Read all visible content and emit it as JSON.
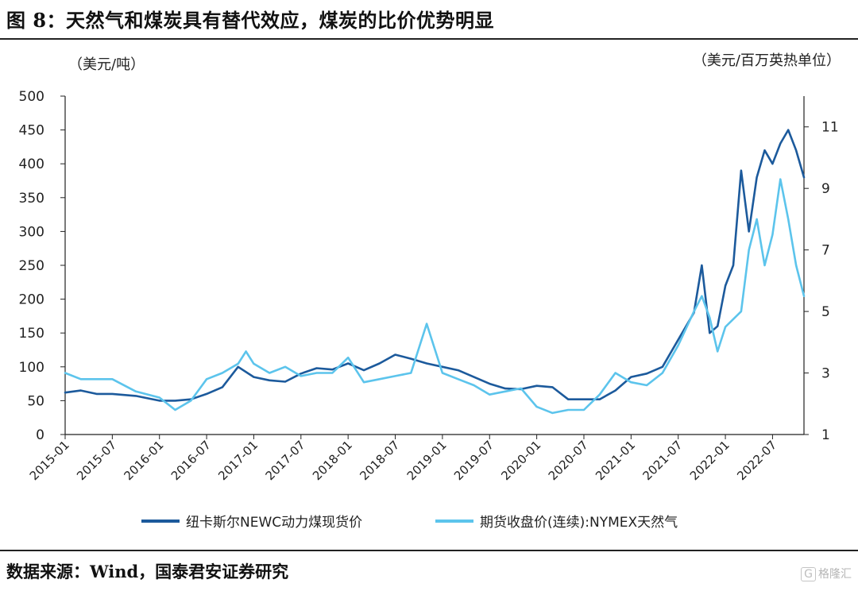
{
  "title": "图 8：天然气和煤炭具有替代效应，煤炭的比价优势明显",
  "source": "数据来源：Wind，国泰君安证券研究",
  "watermark": "格隆汇",
  "chart_data": {
    "type": "line",
    "left_unit": "（美元/吨）",
    "right_unit": "（美元/百万英热单位）",
    "y_left": {
      "min": 0,
      "max": 500,
      "ticks": [
        0,
        50,
        100,
        150,
        200,
        250,
        300,
        350,
        400,
        450,
        500
      ]
    },
    "y_right": {
      "min": 1,
      "max": 12,
      "ticks": [
        1,
        3,
        5,
        7,
        9,
        11
      ]
    },
    "x_ticks": [
      "2015-01",
      "2015-07",
      "2016-01",
      "2016-07",
      "2017-01",
      "2017-07",
      "2018-01",
      "2018-07",
      "2019-01",
      "2019-07",
      "2020-01",
      "2020-07",
      "2021-01",
      "2021-07",
      "2022-01",
      "2022-07"
    ],
    "x_range": [
      "2015-01",
      "2022-11"
    ],
    "grid": false,
    "legend_position": "bottom",
    "series": [
      {
        "name": "纽卡斯尔NEWC动力煤现货价",
        "axis": "left",
        "color": "#1c5a9c",
        "points": [
          [
            "2015-01",
            62
          ],
          [
            "2015-03",
            65
          ],
          [
            "2015-05",
            60
          ],
          [
            "2015-07",
            60
          ],
          [
            "2015-10",
            57
          ],
          [
            "2016-01",
            50
          ],
          [
            "2016-03",
            50
          ],
          [
            "2016-05",
            52
          ],
          [
            "2016-07",
            60
          ],
          [
            "2016-09",
            70
          ],
          [
            "2016-11",
            100
          ],
          [
            "2017-01",
            85
          ],
          [
            "2017-03",
            80
          ],
          [
            "2017-05",
            78
          ],
          [
            "2017-07",
            90
          ],
          [
            "2017-09",
            98
          ],
          [
            "2017-11",
            96
          ],
          [
            "2018-01",
            105
          ],
          [
            "2018-03",
            95
          ],
          [
            "2018-05",
            105
          ],
          [
            "2018-07",
            118
          ],
          [
            "2018-09",
            112
          ],
          [
            "2018-11",
            105
          ],
          [
            "2019-01",
            100
          ],
          [
            "2019-03",
            95
          ],
          [
            "2019-05",
            85
          ],
          [
            "2019-07",
            75
          ],
          [
            "2019-09",
            68
          ],
          [
            "2019-11",
            67
          ],
          [
            "2020-01",
            72
          ],
          [
            "2020-03",
            70
          ],
          [
            "2020-05",
            52
          ],
          [
            "2020-07",
            52
          ],
          [
            "2020-09",
            52
          ],
          [
            "2020-11",
            65
          ],
          [
            "2021-01",
            85
          ],
          [
            "2021-03",
            90
          ],
          [
            "2021-05",
            100
          ],
          [
            "2021-07",
            140
          ],
          [
            "2021-09",
            180
          ],
          [
            "2021-10",
            250
          ],
          [
            "2021-11",
            150
          ],
          [
            "2021-12",
            160
          ],
          [
            "2022-01",
            220
          ],
          [
            "2022-02",
            250
          ],
          [
            "2022-03",
            390
          ],
          [
            "2022-04",
            300
          ],
          [
            "2022-05",
            380
          ],
          [
            "2022-06",
            420
          ],
          [
            "2022-07",
            400
          ],
          [
            "2022-08",
            430
          ],
          [
            "2022-09",
            450
          ],
          [
            "2022-10",
            420
          ],
          [
            "2022-11",
            380
          ]
        ]
      },
      {
        "name": "期货收盘价(连续):NYMEX天然气",
        "axis": "right",
        "color": "#5cc4ec",
        "points": [
          [
            "2015-01",
            3.0
          ],
          [
            "2015-03",
            2.8
          ],
          [
            "2015-05",
            2.8
          ],
          [
            "2015-07",
            2.8
          ],
          [
            "2015-10",
            2.4
          ],
          [
            "2016-01",
            2.2
          ],
          [
            "2016-03",
            1.8
          ],
          [
            "2016-05",
            2.1
          ],
          [
            "2016-07",
            2.8
          ],
          [
            "2016-09",
            3.0
          ],
          [
            "2016-11",
            3.3
          ],
          [
            "2016-12",
            3.7
          ],
          [
            "2017-01",
            3.3
          ],
          [
            "2017-03",
            3.0
          ],
          [
            "2017-05",
            3.2
          ],
          [
            "2017-07",
            2.9
          ],
          [
            "2017-09",
            3.0
          ],
          [
            "2017-11",
            3.0
          ],
          [
            "2018-01",
            3.5
          ],
          [
            "2018-03",
            2.7
          ],
          [
            "2018-05",
            2.8
          ],
          [
            "2018-07",
            2.9
          ],
          [
            "2018-09",
            3.0
          ],
          [
            "2018-11",
            4.6
          ],
          [
            "2019-01",
            3.0
          ],
          [
            "2019-03",
            2.8
          ],
          [
            "2019-05",
            2.6
          ],
          [
            "2019-07",
            2.3
          ],
          [
            "2019-09",
            2.4
          ],
          [
            "2019-11",
            2.5
          ],
          [
            "2020-01",
            1.9
          ],
          [
            "2020-03",
            1.7
          ],
          [
            "2020-05",
            1.8
          ],
          [
            "2020-07",
            1.8
          ],
          [
            "2020-09",
            2.3
          ],
          [
            "2020-11",
            3.0
          ],
          [
            "2021-01",
            2.7
          ],
          [
            "2021-03",
            2.6
          ],
          [
            "2021-05",
            3.0
          ],
          [
            "2021-07",
            3.9
          ],
          [
            "2021-09",
            5.0
          ],
          [
            "2021-10",
            5.5
          ],
          [
            "2021-11",
            4.8
          ],
          [
            "2021-12",
            3.7
          ],
          [
            "2022-01",
            4.5
          ],
          [
            "2022-03",
            5.0
          ],
          [
            "2022-04",
            7.0
          ],
          [
            "2022-05",
            8.0
          ],
          [
            "2022-06",
            6.5
          ],
          [
            "2022-07",
            7.5
          ],
          [
            "2022-08",
            9.3
          ],
          [
            "2022-09",
            8.0
          ],
          [
            "2022-10",
            6.5
          ],
          [
            "2022-11",
            5.5
          ]
        ]
      }
    ]
  }
}
